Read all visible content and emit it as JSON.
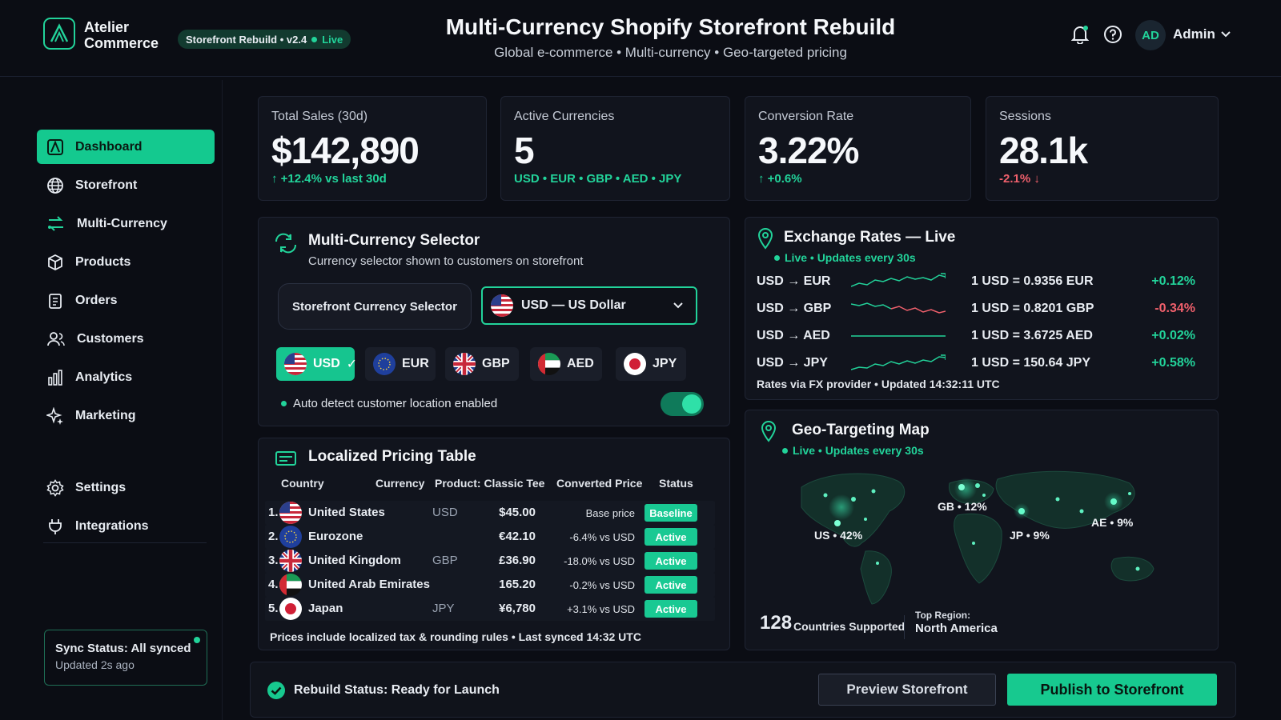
{
  "brand": {
    "name_line1": "Atelier",
    "name_line2": "Commerce",
    "build_badge": "Storefront Rebuild • v2.4",
    "build_status": "Live"
  },
  "header": {
    "title": "Multi-Currency Shopify Storefront Rebuild",
    "subtitle": "Global e-commerce • Multi-currency • Geo-targeted pricing",
    "user_initials": "AD",
    "user_name": "Admin"
  },
  "sidebar": {
    "items": [
      {
        "label": "Dashboard",
        "icon": "dashboard-icon",
        "active": true
      },
      {
        "label": "Storefront",
        "icon": "globe-icon"
      },
      {
        "label": "Multi-Currency",
        "icon": "exchange-icon"
      },
      {
        "label": "Products",
        "icon": "box-icon"
      },
      {
        "label": "Orders",
        "icon": "clipboard-icon"
      },
      {
        "label": "Customers",
        "icon": "users-icon"
      },
      {
        "label": "Analytics",
        "icon": "bar-chart-icon"
      },
      {
        "label": "Marketing",
        "icon": "sparkle-icon"
      }
    ],
    "bottom_items": [
      {
        "label": "Settings",
        "icon": "gear-icon"
      },
      {
        "label": "Integrations",
        "icon": "plug-icon"
      }
    ],
    "sync": {
      "title": "Sync Status: All synced",
      "updated": "Updated 2s ago"
    }
  },
  "kpis": [
    {
      "label": "Total Sales (30d)",
      "value": "$142,890",
      "sub": "↑ +12.4% vs last 30d",
      "trend": "up"
    },
    {
      "label": "Active Currencies",
      "value": "5",
      "sub": "USD • EUR • GBP • AED • JPY",
      "trend": "up"
    },
    {
      "label": "Conversion Rate",
      "value": "3.22%",
      "sub": "↑ +0.6%",
      "trend": "up"
    },
    {
      "label": "Sessions",
      "value": "28.1k",
      "sub": "-2.1% ↓",
      "trend": "down"
    }
  ],
  "currency_selector": {
    "title": "Multi-Currency Selector",
    "subtitle": "Currency selector shown to customers on storefront",
    "selector_label": "Storefront Currency Selector",
    "selected_value": "USD — US Dollar",
    "chips": [
      {
        "code": "USD",
        "check": "✓",
        "selected": true
      },
      {
        "code": "EUR"
      },
      {
        "code": "GBP"
      },
      {
        "code": "AED"
      },
      {
        "code": "JPY"
      }
    ],
    "auto_detect": "Auto detect customer location enabled",
    "auto_detect_on": true
  },
  "pricing_table": {
    "title": "Localized Pricing Table",
    "columns": [
      "Country",
      "Currency",
      "Product: Classic Tee",
      "Converted Price",
      "Status"
    ],
    "rows": [
      {
        "num": "1.",
        "country": "United States",
        "currency": "USD",
        "price": "$45.00",
        "delta": "Base price",
        "status": "Baseline"
      },
      {
        "num": "2.",
        "country": "Eurozone",
        "currency": "",
        "price": "€42.10",
        "delta": "-6.4% vs USD",
        "status": "Active"
      },
      {
        "num": "3.",
        "country": "United Kingdom",
        "currency": "GBP",
        "price": "£36.90",
        "delta": "-18.0% vs USD",
        "status": "Active"
      },
      {
        "num": "4.",
        "country": "United Arab Emirates",
        "currency": "",
        "price": "165.20",
        "delta": "-0.2% vs USD",
        "status": "Active"
      },
      {
        "num": "5.",
        "country": "Japan",
        "currency": "JPY",
        "price": "¥6,780",
        "delta": "+3.1% vs USD",
        "status": "Active"
      }
    ],
    "footer": "Prices include localized tax & rounding rules • Last synced 14:32 UTC"
  },
  "exchange_rates": {
    "title": "Exchange Rates — Live",
    "live": "Live • Updates every 30s",
    "rows": [
      {
        "pair": "USD → EUR",
        "rate": "1 USD = 0.9356 EUR",
        "change": "+0.12%",
        "trend": "up"
      },
      {
        "pair": "USD → GBP",
        "rate": "1 USD = 0.8201 GBP",
        "change": "-0.34%",
        "trend": "down"
      },
      {
        "pair": "USD → AED",
        "rate": "1 USD = 3.6725 AED",
        "change": "+0.02%",
        "trend": "flat"
      },
      {
        "pair": "USD → JPY",
        "rate": "1 USD = 150.64 JPY",
        "change": "+0.58%",
        "trend": "up"
      }
    ],
    "footer": "Rates via FX provider • Updated 14:32:11 UTC"
  },
  "geo_map": {
    "title": "Geo-Targeting Map",
    "live": "Live • Updates every 30s",
    "labels": {
      "us": "US • 42%",
      "gb": "GB • 12%",
      "jp": "JP • 9%",
      "ae": "AE • 9%"
    },
    "countries_count": "128",
    "countries_label": "Countries Supported",
    "top_region_label": "Top Region:",
    "top_region": "North America"
  },
  "footer_bar": {
    "status": "Rebuild Status: Ready for Launch",
    "preview": "Preview Storefront",
    "publish": "Publish to Storefront"
  },
  "colors": {
    "accent": "#22d39a",
    "negative": "#f0606c",
    "background": "#0b0d14",
    "card": "#11141d"
  }
}
